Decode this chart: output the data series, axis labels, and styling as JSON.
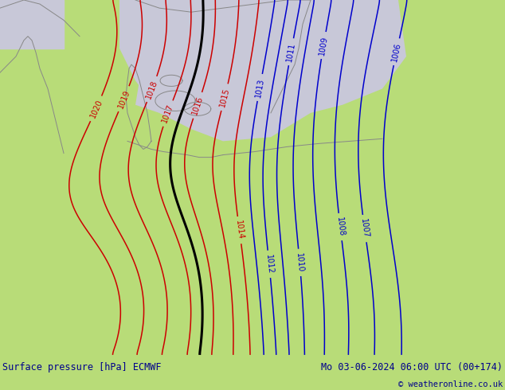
{
  "title_left": "Surface pressure [hPa] ECMWF",
  "title_right": "Mo 03-06-2024 06:00 UTC (00+174)",
  "copyright": "© weatheronline.co.uk",
  "land_color": "#b8dc78",
  "sea_color": "#c8c8d8",
  "bottom_bar_color": "#ffffff",
  "title_color": "#00008B",
  "figsize": [
    6.34,
    4.9
  ],
  "dpi": 100,
  "red_contour_color": "#cc0000",
  "blue_contour_color": "#0000cc",
  "black_contour_color": "#000000",
  "red_levels": [
    1014,
    1015,
    1016,
    1017,
    1018,
    1019,
    1020
  ],
  "blue_levels": [
    1006,
    1007,
    1008,
    1009,
    1010,
    1011,
    1012,
    1013
  ],
  "black_level": [
    1016.5
  ]
}
